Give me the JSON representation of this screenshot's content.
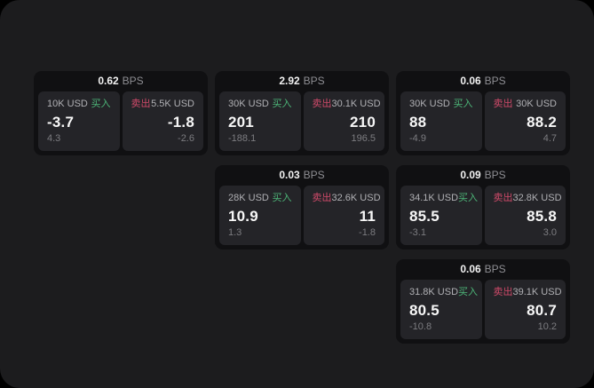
{
  "labels": {
    "bps_suffix": "BPS",
    "buy": "买入",
    "sell": "卖出"
  },
  "colors": {
    "background": "#000000",
    "panel_bg": "#1c1c1e",
    "card_bg": "#101012",
    "pane_bg": "#242428",
    "buy_green": "#4db678",
    "sell_red": "#d04a6a"
  },
  "cards": [
    {
      "bps": "0.62",
      "buy": {
        "size": "10K USD",
        "price": "-3.7",
        "delta": "4.3"
      },
      "sell": {
        "size": "5.5K USD",
        "price": "-1.8",
        "delta": "-2.6"
      }
    },
    {
      "bps": "2.92",
      "buy": {
        "size": "30K USD",
        "price": "201",
        "delta": "-188.1"
      },
      "sell": {
        "size": "30.1K USD",
        "price": "210",
        "delta": "196.5"
      }
    },
    {
      "bps": "0.06",
      "buy": {
        "size": "30K USD",
        "price": "88",
        "delta": "-4.9"
      },
      "sell": {
        "size": "30K USD",
        "price": "88.2",
        "delta": "4.7"
      }
    },
    {
      "bps": "0.03",
      "buy": {
        "size": "28K USD",
        "price": "10.9",
        "delta": "1.3"
      },
      "sell": {
        "size": "32.6K USD",
        "price": "11",
        "delta": "-1.8"
      }
    },
    {
      "bps": "0.09",
      "buy": {
        "size": "34.1K USD",
        "price": "85.5",
        "delta": "-3.1"
      },
      "sell": {
        "size": "32.8K USD",
        "price": "85.8",
        "delta": "3.0"
      }
    },
    {
      "bps": "0.06",
      "buy": {
        "size": "31.8K USD",
        "price": "80.5",
        "delta": "-10.8"
      },
      "sell": {
        "size": "39.1K USD",
        "price": "80.7",
        "delta": "10.2"
      }
    }
  ]
}
